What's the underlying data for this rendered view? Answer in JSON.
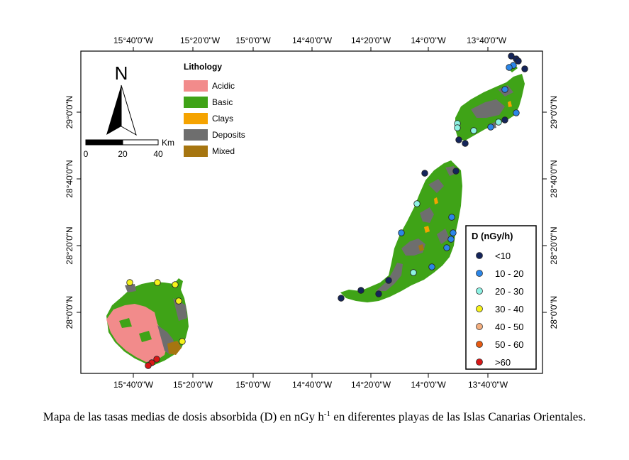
{
  "map": {
    "top_lon_labels": [
      "15°40'0\"W",
      "15°20'0\"W",
      "15°0'0\"W",
      "14°40'0\"W",
      "14°20'0\"W",
      "14°0'0\"W",
      "13°40'0\"W"
    ],
    "bottom_lon_labels": [
      "15°40'0\"W",
      "15°20'0\"W",
      "15°0'0\"W",
      "14°40'0\"W",
      "14°20'0\"W",
      "14°0'0\"W",
      "13°40'0\"W"
    ],
    "left_lat_labels": [
      "29°0'0\"N",
      "28°40'0\"N",
      "28°20'0\"N",
      "28°0'0\"N"
    ],
    "right_lat_labels": [
      "29°0'0\"N",
      "28°40'0\"N",
      "28°20'0\"N",
      "28°0'0\"N"
    ],
    "north_label": "N",
    "scale": {
      "unit": "Km",
      "ticks": [
        "0",
        "20",
        "40"
      ]
    },
    "lithology": {
      "title": "Lithology",
      "items": [
        {
          "label": "Acidic",
          "color": "#f28b8b"
        },
        {
          "label": "Basic",
          "color": "#3fa317"
        },
        {
          "label": "Clays",
          "color": "#f5a300"
        },
        {
          "label": "Deposits",
          "color": "#6e6e6e"
        },
        {
          "label": "Mixed",
          "color": "#a67510"
        }
      ]
    },
    "dose_legend": {
      "title": "D (nGy/h)",
      "classes": [
        {
          "label": "<10",
          "color": "#14245a"
        },
        {
          "label": "10 - 20",
          "color": "#2b86e8"
        },
        {
          "label": "20 - 30",
          "color": "#8ef2e4"
        },
        {
          "label": "30 - 40",
          "color": "#f5f21a"
        },
        {
          "label": "40 - 50",
          "color": "#f3ae7e"
        },
        {
          "label": "50 - 60",
          "color": "#e75a12"
        },
        {
          "label": ">60",
          "color": "#d81616"
        }
      ]
    }
  },
  "caption": {
    "pre": "Mapa de las tasas medias de dosis absorbida (D) en nGy h",
    "sup": "-1",
    "post": " en diferentes playas de las Islas Canarias Orientales."
  }
}
